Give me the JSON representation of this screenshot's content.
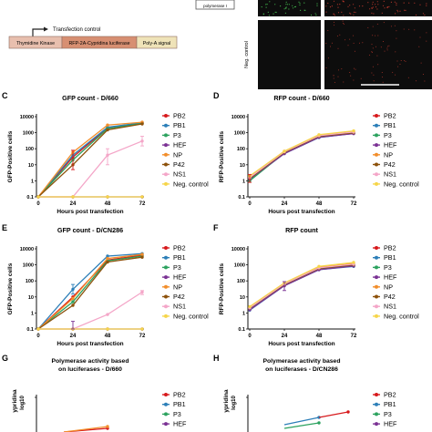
{
  "colors": {
    "PB2": "#d7191c",
    "PB1": "#2c7fb8",
    "P3": "#2ca25f",
    "HEF": "#7b3294",
    "NP": "#f28e2b",
    "P42": "#8c510a",
    "NS1": "#f4a6c8",
    "Neg. control": "#f6d54a",
    "micro_bg": "#0d0d0d",
    "micro_green": "#3fae49",
    "micro_red": "#b0352a",
    "panel_thymidine": "#e8bfae",
    "panel_rfp": "#d78f72",
    "panel_polya": "#efe3b8"
  },
  "construct": {
    "promoter_label": "polymerase I",
    "transfection_label": "Transfection control",
    "boxes": [
      "Thymidine Kinase",
      "RFP-2A-Cypridina luciferase",
      "Poly-A signal"
    ]
  },
  "microscopy": {
    "neg_label": "Neg. control"
  },
  "panels": [
    {
      "letter": "C",
      "title": "GFP count - D/660"
    },
    {
      "letter": "D",
      "title": "RFP count - D/660"
    },
    {
      "letter": "E",
      "title": "GFP count - D/CN286"
    },
    {
      "letter": "F",
      "title": "RFP count"
    },
    {
      "letter": "G",
      "title_lines": [
        "Polymerase activity based",
        "on luciferases - D/660"
      ]
    },
    {
      "letter": "H",
      "title_lines": [
        "Polymerase activity based",
        "on luciferases - D/CN286"
      ]
    }
  ],
  "chart_data": [
    {
      "id": "C",
      "type": "line",
      "title": "GFP count - D/660",
      "xlabel": "Hours post transfection",
      "ylabel": "GFP-Positive cells",
      "x": [
        0,
        24,
        48,
        72
      ],
      "x_ticks": [
        "0",
        "24",
        "48",
        "72"
      ],
      "y_scale": "log",
      "ylim": [
        0.1,
        10000
      ],
      "y_ticks": [
        "0.1",
        "1",
        "10",
        "100",
        "1000",
        "10000"
      ],
      "series": [
        {
          "name": "PB2",
          "values": [
            0.1,
            30,
            2000,
            4000
          ]
        },
        {
          "name": "PB1",
          "values": [
            0.1,
            40,
            2200,
            4200
          ]
        },
        {
          "name": "P3",
          "values": [
            0.1,
            20,
            1800,
            3800
          ]
        },
        {
          "name": "HEF",
          "values": [
            0.1,
            0.1,
            0.1,
            0.1
          ]
        },
        {
          "name": "NP",
          "values": [
            0.1,
            60,
            3000,
            4500
          ]
        },
        {
          "name": "P42",
          "values": [
            0.1,
            10,
            1500,
            3500
          ]
        },
        {
          "name": "NS1",
          "values": [
            0.1,
            0.1,
            40,
            300
          ]
        },
        {
          "name": "Neg. control",
          "values": [
            0.1,
            0.1,
            0.1,
            0.1
          ]
        }
      ]
    },
    {
      "id": "D",
      "type": "line",
      "title": "RFP count - D/660",
      "xlabel": "Hours post transfection",
      "ylabel": "RFP-Positive cells",
      "x": [
        0,
        24,
        48,
        72
      ],
      "x_ticks": [
        "0",
        "24",
        "48",
        "72"
      ],
      "y_scale": "log",
      "ylim": [
        0.1,
        10000
      ],
      "y_ticks": [
        "0.1",
        "1",
        "10",
        "100",
        "1000",
        "10000"
      ],
      "series": [
        {
          "name": "PB2",
          "values": [
            1.5,
            60,
            600,
            1000
          ]
        },
        {
          "name": "PB1",
          "values": [
            1.2,
            50,
            500,
            900
          ]
        },
        {
          "name": "P3",
          "values": [
            1,
            55,
            550,
            950
          ]
        },
        {
          "name": "HEF",
          "values": [
            1.3,
            50,
            520,
            880
          ]
        },
        {
          "name": "NP",
          "values": [
            1.8,
            70,
            700,
            1200
          ]
        },
        {
          "name": "P42",
          "values": [
            1.4,
            60,
            600,
            1000
          ]
        },
        {
          "name": "NS1",
          "values": [
            1.6,
            65,
            650,
            1100
          ]
        },
        {
          "name": "Neg. control",
          "values": [
            2,
            70,
            750,
            1300
          ]
        }
      ]
    },
    {
      "id": "E",
      "type": "line",
      "title": "GFP count - D/CN286",
      "xlabel": "Hours post transfection",
      "ylabel": "GFP-Positive cells",
      "x": [
        0,
        24,
        48,
        72
      ],
      "x_ticks": [
        "0",
        "24",
        "48",
        "72"
      ],
      "y_scale": "log",
      "ylim": [
        0.1,
        10000
      ],
      "y_ticks": [
        "0.1",
        "1",
        "10",
        "100",
        "1000",
        "10000"
      ],
      "series": [
        {
          "name": "PB2",
          "values": [
            0.1,
            10,
            2000,
            4000
          ]
        },
        {
          "name": "PB1",
          "values": [
            0.1,
            30,
            3500,
            5000
          ]
        },
        {
          "name": "P3",
          "values": [
            0.1,
            5,
            1800,
            3500
          ]
        },
        {
          "name": "HEF",
          "values": [
            0.1,
            0.1,
            0.1,
            0.1
          ]
        },
        {
          "name": "NP",
          "values": [
            0.1,
            8,
            2500,
            4500
          ]
        },
        {
          "name": "P42",
          "values": [
            0.1,
            3,
            1500,
            3000
          ]
        },
        {
          "name": "NS1",
          "values": [
            0.1,
            0.1,
            0.8,
            20
          ]
        },
        {
          "name": "Neg. control",
          "values": [
            0.1,
            0.1,
            0.1,
            0.1
          ]
        }
      ]
    },
    {
      "id": "F",
      "type": "line",
      "title": "RFP count",
      "xlabel": "Hours post transfection",
      "ylabel": "RFP-Positive cells",
      "x": [
        0,
        24,
        48,
        72
      ],
      "x_ticks": [
        "0",
        "24",
        "48",
        "72"
      ],
      "y_scale": "log",
      "ylim": [
        0.1,
        10000
      ],
      "y_ticks": [
        "0.1",
        "1",
        "10",
        "100",
        "1000",
        "10000"
      ],
      "series": [
        {
          "name": "PB2",
          "values": [
            2,
            60,
            600,
            1000
          ]
        },
        {
          "name": "PB1",
          "values": [
            1.5,
            50,
            500,
            800
          ]
        },
        {
          "name": "P3",
          "values": [
            1.8,
            55,
            550,
            900
          ]
        },
        {
          "name": "HEF",
          "values": [
            1.6,
            50,
            500,
            850
          ]
        },
        {
          "name": "NP",
          "values": [
            2.2,
            70,
            700,
            1200
          ]
        },
        {
          "name": "P42",
          "values": [
            2,
            60,
            600,
            1000
          ]
        },
        {
          "name": "NS1",
          "values": [
            2.1,
            65,
            650,
            1100
          ]
        },
        {
          "name": "Neg. control",
          "values": [
            2.5,
            75,
            800,
            1400
          ]
        }
      ]
    },
    {
      "id": "G",
      "type": "line",
      "title": "Polymerase activity based on luciferases - D/660",
      "ylabel_visible": "ypridina",
      "ylabel_log": "log10",
      "series": [
        {
          "name": "PB2",
          "values": []
        },
        {
          "name": "PB1",
          "values": []
        },
        {
          "name": "P3",
          "values": []
        },
        {
          "name": "HEF",
          "values": []
        }
      ]
    },
    {
      "id": "H",
      "type": "line",
      "title": "Polymerase activity based on luciferases - D/CN286",
      "ylabel_visible": "ypridina",
      "ylabel_log": "log10",
      "series": [
        {
          "name": "PB2",
          "values": []
        },
        {
          "name": "PB1",
          "values": []
        },
        {
          "name": "P3",
          "values": []
        },
        {
          "name": "HEF",
          "values": []
        }
      ]
    }
  ]
}
